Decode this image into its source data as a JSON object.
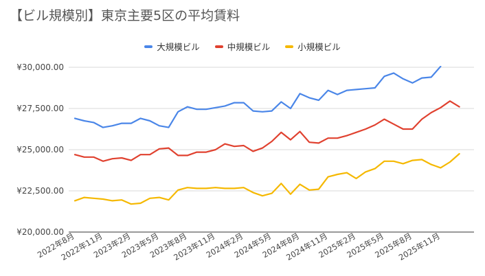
{
  "chart_data": {
    "type": "line",
    "title": "【ビル規模別】東京主要5区の平均賃料",
    "xlabel": "",
    "ylabel": "",
    "ylim": [
      20000,
      30000
    ],
    "yticks": [
      "¥30,000.00",
      "¥27,500.00",
      "¥25,000.00",
      "¥22,500.00",
      "¥20,000.00"
    ],
    "ytick_values": [
      30000,
      27500,
      25000,
      22500,
      20000
    ],
    "x_tick_labels": [
      "2022年8月",
      "2022年11月",
      "2023年2月",
      "2023年5月",
      "2023年8月",
      "2023年11月",
      "2024年2月",
      "2024年5月",
      "2024年8月",
      "2024年11月",
      "2025年2月",
      "2025年5月",
      "2025年8月",
      "2025年11月"
    ],
    "x": [
      "2022-08",
      "2022-09",
      "2022-10",
      "2022-11",
      "2022-12",
      "2023-01",
      "2023-02",
      "2023-03",
      "2023-04",
      "2023-05",
      "2023-06",
      "2023-07",
      "2023-08",
      "2023-09",
      "2023-10",
      "2023-11",
      "2023-12",
      "2024-01",
      "2024-02",
      "2024-03",
      "2024-04",
      "2024-05",
      "2024-06",
      "2024-07",
      "2024-08",
      "2024-09",
      "2024-10",
      "2024-11",
      "2024-12",
      "2025-01",
      "2025-02",
      "2025-03",
      "2025-04",
      "2025-05",
      "2025-06",
      "2025-07",
      "2025-08",
      "2025-09",
      "2025-10",
      "2025-11",
      "2025-12",
      "2026-01",
      "2026-02"
    ],
    "grid": true,
    "legend_position": "top-center",
    "series": [
      {
        "name": "大規模ビル",
        "color": "#4a86e8",
        "values": [
          26900,
          26750,
          26650,
          26350,
          26450,
          26600,
          26600,
          26900,
          26750,
          26450,
          26350,
          27300,
          27600,
          27450,
          27450,
          27550,
          27650,
          27850,
          27850,
          27350,
          27300,
          27350,
          27900,
          27500,
          28400,
          28150,
          28000,
          28600,
          28350,
          28600,
          28650,
          28700,
          28750,
          29450,
          29650,
          29300,
          29050,
          29350,
          29400,
          30050,
          null,
          null,
          null
        ]
      },
      {
        "name": "中規模ビル",
        "color": "#e0412f",
        "values": [
          24700,
          24550,
          24550,
          24300,
          24450,
          24500,
          24350,
          24700,
          24700,
          25050,
          25100,
          24650,
          24650,
          24850,
          24850,
          25000,
          25350,
          25200,
          25250,
          24900,
          25100,
          25500,
          26050,
          25600,
          26100,
          25450,
          25400,
          25700,
          25700,
          25850,
          26050,
          26250,
          26500,
          26850,
          26550,
          26250,
          26250,
          26850,
          27250,
          27550,
          27950,
          27600,
          null
        ]
      },
      {
        "name": "小規模ビル",
        "color": "#f5b800",
        "values": [
          21900,
          22100,
          22050,
          22000,
          21900,
          21950,
          21700,
          21750,
          22050,
          22100,
          21950,
          22550,
          22700,
          22650,
          22650,
          22700,
          22650,
          22650,
          22700,
          22400,
          22200,
          22350,
          22950,
          22300,
          22900,
          22550,
          22600,
          23350,
          23500,
          23600,
          23250,
          23650,
          23850,
          24300,
          24300,
          24150,
          24350,
          24400,
          24100,
          23900,
          24250,
          24750,
          null
        ]
      }
    ]
  }
}
